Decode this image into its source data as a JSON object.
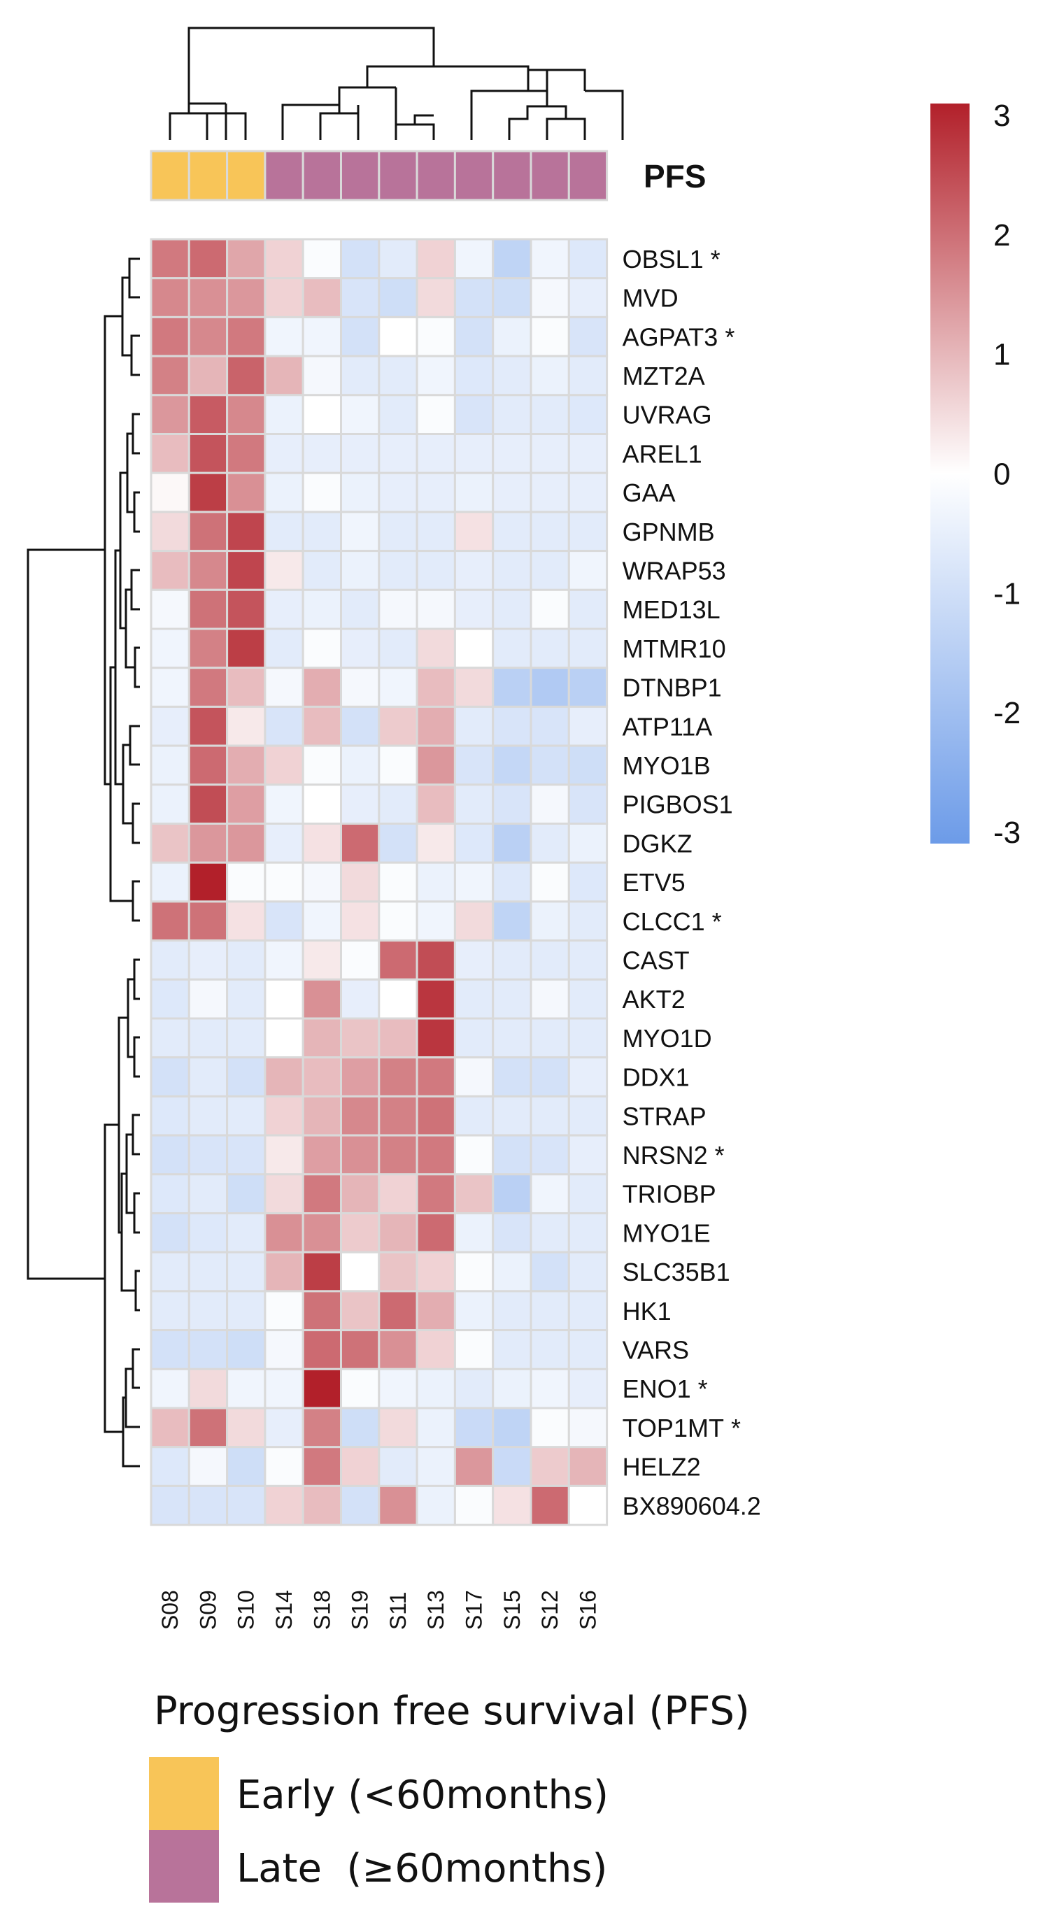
{
  "chart_data": {
    "type": "heatmap",
    "title": "",
    "samples": [
      "S08",
      "S09",
      "S10",
      "S14",
      "S18",
      "S19",
      "S11",
      "S13",
      "S17",
      "S15",
      "S12",
      "S16"
    ],
    "pfs_annotation": {
      "title": "PFS",
      "values": [
        "Early",
        "Early",
        "Early",
        "Late",
        "Late",
        "Late",
        "Late",
        "Late",
        "Late",
        "Late",
        "Late",
        "Late"
      ],
      "colors": {
        "Early": "#f8c558",
        "Late": "#b8739a"
      }
    },
    "genes": [
      "OBSL1",
      "MVD",
      "AGPAT3",
      "MZT2A",
      "UVRAG",
      "AREL1",
      "GAA",
      "GPNMB",
      "WRAP53",
      "MED13L",
      "MTMR10",
      "DTNBP1",
      "ATP11A",
      "MYO1B",
      "PIGBOS1",
      "DGKZ",
      "ETV5",
      "CLCC1",
      "CAST",
      "AKT2",
      "MYO1D",
      "DDX1",
      "STRAP",
      "NRSN2",
      "TRIOBP",
      "MYO1E",
      "SLC35B1",
      "HK1",
      "VARS",
      "ENO1",
      "TOP1MT",
      "HELZ2",
      "BX890604.2"
    ],
    "starred_genes": [
      "OBSL1",
      "AGPAT3",
      "CLCC1",
      "NRSN2",
      "ENO1",
      "TOP1MT"
    ],
    "star_symbol": "*",
    "values": [
      [
        1.8,
        2.0,
        1.2,
        0.6,
        -0.1,
        -0.9,
        -0.6,
        0.6,
        -0.3,
        -1.3,
        -0.3,
        -0.7
      ],
      [
        1.6,
        1.5,
        1.4,
        0.6,
        0.9,
        -0.8,
        -1.0,
        0.5,
        -0.9,
        -1.0,
        -0.2,
        -0.5
      ],
      [
        1.8,
        1.6,
        1.8,
        -0.3,
        -0.3,
        -0.9,
        0.0,
        -0.1,
        -0.9,
        -0.4,
        -0.1,
        -0.8
      ],
      [
        1.7,
        1.0,
        2.1,
        1.0,
        -0.2,
        -0.6,
        -0.6,
        -0.3,
        -0.7,
        -0.6,
        -0.4,
        -0.6
      ],
      [
        1.4,
        2.2,
        1.6,
        -0.4,
        0.0,
        -0.3,
        -0.6,
        -0.1,
        -0.8,
        -0.6,
        -0.6,
        -0.7
      ],
      [
        0.9,
        2.3,
        1.8,
        -0.5,
        -0.5,
        -0.5,
        -0.5,
        -0.5,
        -0.5,
        -0.5,
        -0.5,
        -0.5
      ],
      [
        0.1,
        2.6,
        1.5,
        -0.4,
        -0.1,
        -0.4,
        -0.5,
        -0.5,
        -0.4,
        -0.5,
        -0.5,
        -0.5
      ],
      [
        0.5,
        1.9,
        2.5,
        -0.6,
        -0.6,
        -0.3,
        -0.6,
        -0.6,
        0.4,
        -0.6,
        -0.6,
        -0.6
      ],
      [
        0.9,
        1.6,
        2.5,
        0.3,
        -0.6,
        -0.4,
        -0.6,
        -0.6,
        -0.5,
        -0.6,
        -0.6,
        -0.3
      ],
      [
        -0.2,
        1.9,
        2.3,
        -0.5,
        -0.4,
        -0.6,
        -0.2,
        -0.2,
        -0.5,
        -0.6,
        -0.1,
        -0.6
      ],
      [
        -0.3,
        1.7,
        2.6,
        -0.6,
        -0.1,
        -0.5,
        -0.6,
        0.5,
        0.0,
        -0.6,
        -0.6,
        -0.6
      ],
      [
        -0.3,
        1.8,
        0.9,
        -0.2,
        1.1,
        -0.2,
        -0.3,
        0.9,
        0.5,
        -1.4,
        -1.6,
        -1.4
      ],
      [
        -0.5,
        2.3,
        0.3,
        -0.8,
        0.9,
        -0.9,
        0.7,
        1.1,
        -0.6,
        -0.8,
        -0.8,
        -0.5
      ],
      [
        -0.4,
        2.0,
        1.1,
        0.6,
        -0.1,
        -0.4,
        -0.1,
        1.4,
        -0.8,
        -1.2,
        -0.9,
        -1.0
      ],
      [
        -0.4,
        2.4,
        1.3,
        -0.3,
        0.0,
        -0.5,
        -0.6,
        0.9,
        -0.6,
        -0.8,
        -0.2,
        -0.8
      ],
      [
        0.8,
        1.4,
        1.4,
        -0.5,
        0.4,
        2.0,
        -0.9,
        0.3,
        -0.7,
        -1.4,
        -0.6,
        -0.4
      ],
      [
        -0.4,
        3.0,
        -0.1,
        -0.1,
        -0.2,
        0.5,
        -0.1,
        -0.4,
        -0.3,
        -0.7,
        -0.1,
        -0.7
      ],
      [
        1.9,
        1.9,
        0.4,
        -0.8,
        -0.3,
        0.4,
        -0.1,
        -0.3,
        0.5,
        -1.3,
        -0.4,
        -0.6
      ],
      [
        -0.6,
        -0.5,
        -0.6,
        -0.3,
        0.3,
        -0.1,
        2.0,
        2.4,
        -0.5,
        -0.6,
        -0.6,
        -0.6
      ],
      [
        -0.7,
        -0.2,
        -0.6,
        0.0,
        1.5,
        -0.5,
        0.0,
        2.7,
        -0.6,
        -0.6,
        -0.2,
        -0.6
      ],
      [
        -0.6,
        -0.6,
        -0.6,
        0.0,
        1.0,
        0.8,
        0.9,
        2.7,
        -0.6,
        -0.6,
        -0.6,
        -0.6
      ],
      [
        -0.9,
        -0.6,
        -0.9,
        1.0,
        0.9,
        1.3,
        1.7,
        1.8,
        -0.2,
        -0.9,
        -0.9,
        -0.5
      ],
      [
        -0.7,
        -0.6,
        -0.6,
        0.6,
        1.0,
        1.6,
        1.7,
        1.9,
        -0.6,
        -0.6,
        -0.6,
        -0.6
      ],
      [
        -0.9,
        -0.8,
        -0.8,
        0.3,
        1.3,
        1.5,
        1.7,
        1.8,
        -0.1,
        -0.9,
        -0.8,
        -0.5
      ],
      [
        -0.7,
        -0.6,
        -1.0,
        0.5,
        1.8,
        1.0,
        0.6,
        1.8,
        0.8,
        -1.4,
        -0.3,
        -0.6
      ],
      [
        -0.9,
        -0.7,
        -0.6,
        1.5,
        1.5,
        0.7,
        1.0,
        2.0,
        -0.4,
        -0.8,
        -0.6,
        -0.6
      ],
      [
        -0.6,
        -0.6,
        -0.6,
        1.0,
        2.6,
        0.0,
        0.8,
        0.6,
        -0.1,
        -0.4,
        -0.9,
        -0.6
      ],
      [
        -0.6,
        -0.6,
        -0.6,
        -0.1,
        1.9,
        0.8,
        2.0,
        1.1,
        -0.4,
        -0.6,
        -0.6,
        -0.6
      ],
      [
        -0.9,
        -0.9,
        -1.0,
        -0.2,
        2.0,
        1.9,
        1.5,
        0.6,
        -0.1,
        -0.6,
        -0.6,
        -0.6
      ],
      [
        -0.3,
        0.5,
        -0.3,
        -0.3,
        3.0,
        -0.1,
        -0.3,
        -0.4,
        -0.6,
        -0.4,
        -0.3,
        -0.5
      ],
      [
        0.9,
        1.9,
        0.5,
        -0.5,
        1.7,
        -1.0,
        0.5,
        -0.4,
        -1.1,
        -1.3,
        -0.1,
        -0.2
      ],
      [
        -0.7,
        -0.2,
        -1.0,
        -0.1,
        1.8,
        0.6,
        -0.6,
        -0.4,
        1.4,
        -1.1,
        0.7,
        1.0
      ],
      [
        -0.8,
        -0.8,
        -0.8,
        0.6,
        0.9,
        -0.9,
        1.5,
        -0.4,
        -0.1,
        0.4,
        2.0,
        0.0
      ]
    ],
    "colorbar": {
      "min": -3,
      "max": 3,
      "ticks": [
        "3",
        "2",
        "1",
        "0",
        "-1",
        "-2",
        "-3"
      ],
      "colors": {
        "low": "#6c9be8",
        "mid": "#ffffff",
        "high": "#b2202a"
      }
    },
    "legend": {
      "title": "Progression free survival (PFS)",
      "items": [
        {
          "label": "Early (<60months)",
          "color": "#f8c558"
        },
        {
          "label": "Late  (≥60months)",
          "color": "#b8739a"
        }
      ]
    }
  }
}
